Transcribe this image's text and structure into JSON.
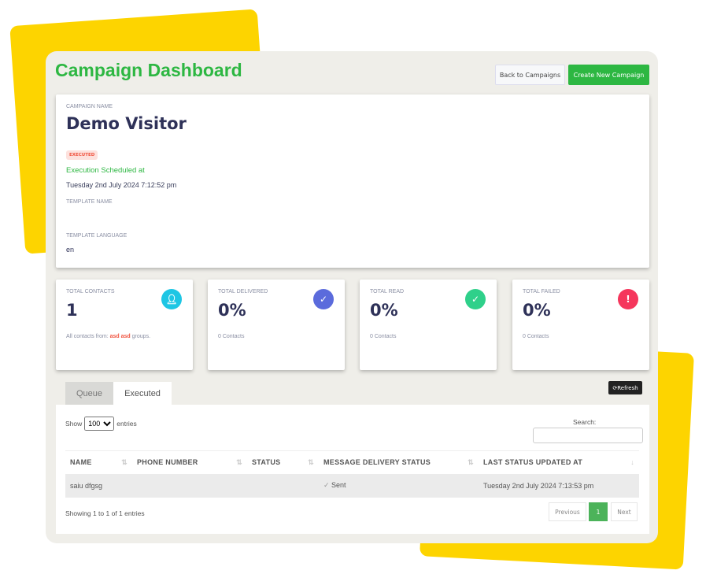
{
  "header": {
    "title": "Campaign Dashboard",
    "back_label": "Back to Campaigns",
    "create_label": "Create New Campaign"
  },
  "campaign": {
    "name_label": "CAMPAIGN NAME",
    "name": "Demo Visitor",
    "status_badge": "EXECUTED",
    "scheduled_label": "Execution Scheduled at",
    "scheduled_at": "Tuesday 2nd July 2024 7:12:52 pm",
    "template_name_label": "TEMPLATE NAME",
    "template_name": "",
    "template_language_label": "TEMPLATE LANGUAGE",
    "template_language": "en"
  },
  "stats": [
    {
      "label": "TOTAL CONTACTS",
      "value": "1",
      "sub_prefix": "All contacts from: ",
      "sub_highlight": "asd asd",
      "sub_suffix": " groups.",
      "icon": "user-icon",
      "color": "#1ec6e4"
    },
    {
      "label": "TOTAL DELIVERED",
      "value": "0%",
      "sub": "0 Contacts",
      "icon": "check-icon",
      "color": "#5b6bdc"
    },
    {
      "label": "TOTAL READ",
      "value": "0%",
      "sub": "0 Contacts",
      "icon": "double-check-icon",
      "color": "#2fd08a"
    },
    {
      "label": "TOTAL FAILED",
      "value": "0%",
      "sub": "0 Contacts",
      "icon": "alert-icon",
      "color": "#f5365c"
    }
  ],
  "tabs": [
    {
      "label": "Queue"
    },
    {
      "label": "Executed"
    }
  ],
  "refresh_label": "Refresh",
  "table": {
    "show_label": "Show",
    "entries_label": "entries",
    "page_size": "100",
    "search_label": "Search:",
    "search_value": "",
    "columns": [
      "NAME",
      "PHONE NUMBER",
      "STATUS",
      "MESSAGE DELIVERY STATUS",
      "LAST STATUS UPDATED AT"
    ],
    "rows": [
      {
        "name": "saiu dfgsg",
        "phone": "",
        "status": "",
        "delivery": "Sent",
        "updated": "Tuesday 2nd July 2024 7:13:53 pm"
      }
    ],
    "info": "Showing 1 to 1 of 1 entries",
    "prev": "Previous",
    "page": "1",
    "next": "Next"
  }
}
